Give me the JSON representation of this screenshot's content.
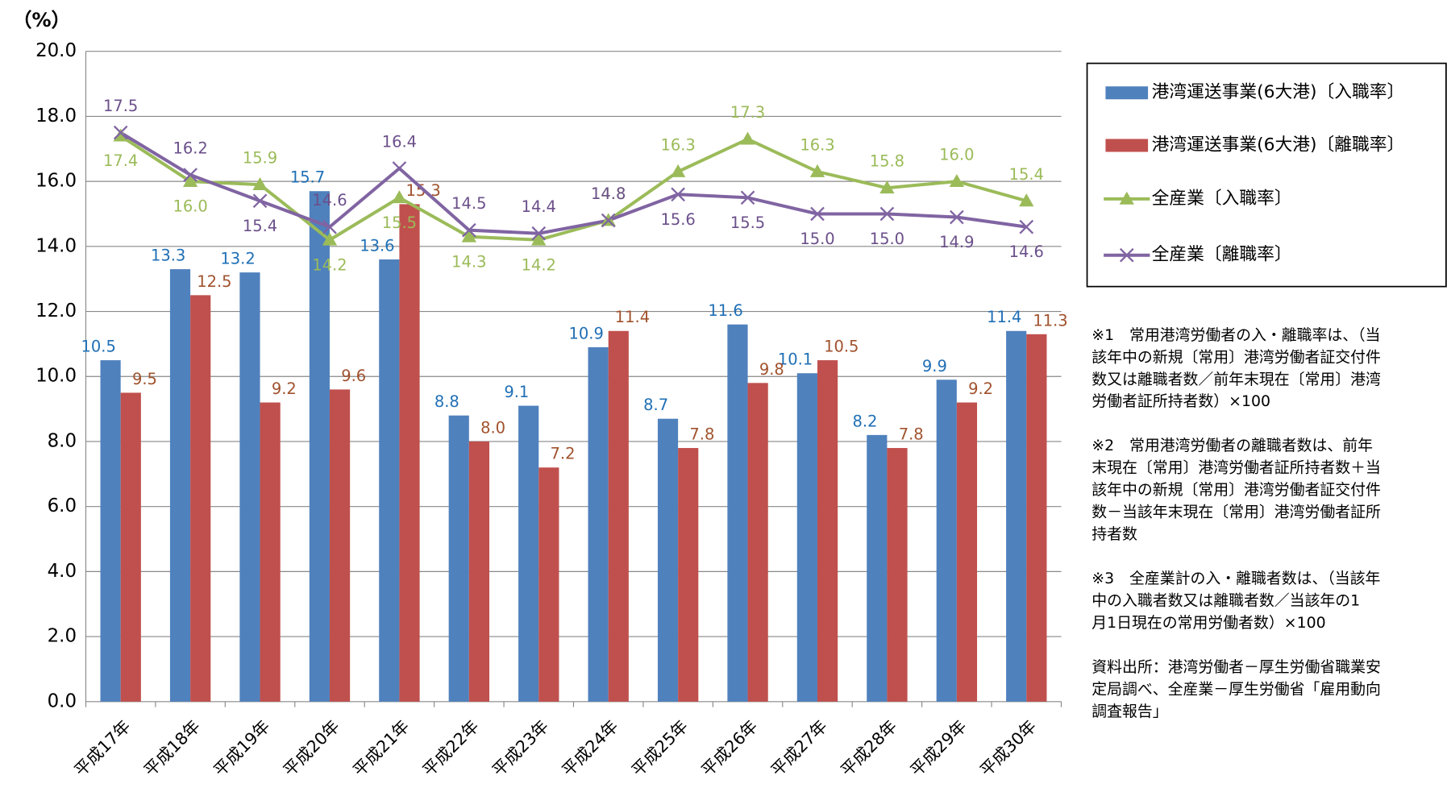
{
  "chart_data": {
    "type": "bar_line",
    "y_label": "（%）",
    "categories": [
      "平成17年",
      "平成18年",
      "平成19年",
      "平成20年",
      "平成21年",
      "平成22年",
      "平成23年",
      "平成24年",
      "平成25年",
      "平成26年",
      "平成27年",
      "平成28年",
      "平成29年",
      "平成30年"
    ],
    "ylim": [
      0,
      20
    ],
    "yticks": [
      {
        "value": 0,
        "label": "0.0"
      },
      {
        "value": 2,
        "label": "2.0"
      },
      {
        "value": 4,
        "label": "4.0"
      },
      {
        "value": 6,
        "label": "6.0"
      },
      {
        "value": 8,
        "label": "8.0"
      },
      {
        "value": 10,
        "label": "10.0"
      },
      {
        "value": 12,
        "label": "12.0"
      },
      {
        "value": 14,
        "label": "14.0"
      },
      {
        "value": 16,
        "label": "16.0"
      },
      {
        "value": 18,
        "label": "18.0"
      },
      {
        "value": 20,
        "label": "20.0"
      }
    ],
    "grid": true,
    "series": [
      {
        "name": "港湾運送事業(6大港)〔入職率〕",
        "kind": "bar",
        "color": "#4f81bd",
        "label_color": "#1f6fb5",
        "values": [
          10.5,
          13.3,
          13.2,
          15.7,
          13.6,
          8.8,
          9.1,
          10.9,
          8.7,
          11.6,
          10.1,
          8.2,
          9.9,
          11.4
        ],
        "value_labels": [
          "10.5",
          "13.3",
          "13.2",
          "15.7",
          "13.6",
          "8.8",
          "9.1",
          "10.9",
          "8.7",
          "11.6",
          "10.1",
          "8.2",
          "9.9",
          "11.4"
        ]
      },
      {
        "name": "港湾運送事業(6大港)〔離職率〕",
        "kind": "bar",
        "color": "#c0504d",
        "label_color": "#a0522d",
        "values": [
          9.5,
          12.5,
          9.2,
          9.6,
          15.3,
          8.0,
          7.2,
          11.4,
          7.8,
          9.8,
          10.5,
          7.8,
          9.2,
          11.3
        ],
        "value_labels": [
          "9.5",
          "12.5",
          "9.2",
          "9.6",
          "15.3",
          "8.0",
          "7.2",
          "11.4",
          "7.8",
          "9.8",
          "10.5",
          "7.8",
          "9.2",
          "11.3"
        ]
      },
      {
        "name": "全産業〔入職率〕",
        "kind": "line",
        "marker": "triangle",
        "color": "#9bbb59",
        "label_color": "#9bbb59",
        "values": [
          17.4,
          16.0,
          15.9,
          14.2,
          15.5,
          14.3,
          14.2,
          14.8,
          16.3,
          17.3,
          16.3,
          15.8,
          16.0,
          15.4
        ],
        "value_labels": [
          "17.4",
          "16.0",
          "15.9",
          "14.2",
          "15.5",
          "14.3",
          "14.2",
          "14.8",
          "16.3",
          "17.3",
          "16.3",
          "15.8",
          "16.0",
          "15.4"
        ]
      },
      {
        "name": "全産業〔離職率〕",
        "kind": "line",
        "marker": "x",
        "color": "#8064a2",
        "label_color": "#6b4f8a",
        "values": [
          17.5,
          16.2,
          15.4,
          14.6,
          16.4,
          14.5,
          14.4,
          14.8,
          15.6,
          15.5,
          15.0,
          15.0,
          14.9,
          14.6
        ],
        "value_labels": [
          "17.5",
          "16.2",
          "15.4",
          "14.6",
          "16.4",
          "14.5",
          "14.4",
          "14.8",
          "15.6",
          "15.5",
          "15.0",
          "15.0",
          "14.9",
          "14.6"
        ]
      }
    ],
    "notes": [
      [
        "※1　常用港湾労働者の入・離職率は、（当",
        "該年中の新規〔常用〕港湾労働者証交付件",
        "数又は離職者数／前年末現在〔常用〕港湾",
        "労働者証所持者数）×100"
      ],
      [
        "※2　常用港湾労働者の離職者数は、前年",
        "末現在〔常用〕港湾労働者証所持者数＋当",
        "該年中の新規〔常用〕港湾労働者証交付件",
        "数－当該年末現在〔常用〕港湾労働者証所",
        "持者数"
      ],
      [
        "※3　全産業計の入・離職者数は、（当該年",
        "中の入職者数又は離職者数／当該年の1",
        "月1日現在の常用労働者数）×100"
      ],
      [
        "資料出所：港湾労働者－厚生労働省職業安",
        "定局調べ、全産業－厚生労働省「雇用動向",
        "調査報告」"
      ]
    ]
  }
}
